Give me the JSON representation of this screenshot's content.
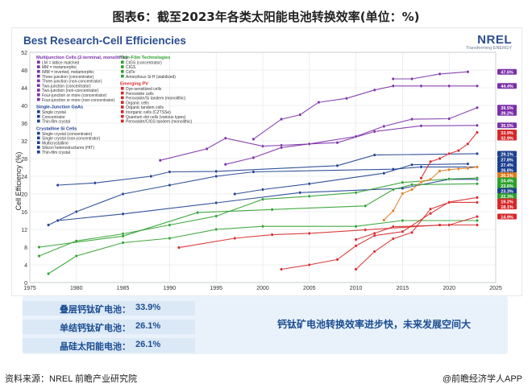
{
  "figure_title": "图表6：截至2023年各类太阳能电池转换效率(单位：%)",
  "chart_data": {
    "type": "line",
    "title": "Best Research-Cell Efficiencies",
    "ylabel": "Cell Efficiency (%)",
    "xlabel": "",
    "xlim": [
      1975,
      2025
    ],
    "ylim": [
      0,
      52
    ],
    "x_ticks": [
      1975,
      1980,
      1985,
      1990,
      1995,
      2000,
      2005,
      2010,
      2015,
      2020,
      2025
    ],
    "y_ticks": [
      0,
      4,
      8,
      12,
      16,
      20,
      24,
      28,
      32,
      36,
      40,
      44,
      48,
      52
    ],
    "grid": true,
    "legend_position": "top-left",
    "series": [
      {
        "name": "Three-junction (concentrator)",
        "color": "#7b2fa8",
        "x": [
          1999,
          2002,
          2004,
          2006,
          2009,
          2012,
          2014,
          2017,
          2020,
          2023
        ],
        "y": [
          32.4,
          36.9,
          37.9,
          40.7,
          41.6,
          43.5,
          44.4,
          44.4,
          44.4,
          44.4
        ]
      },
      {
        "name": "Four-junction or more (concentrator)",
        "color": "#7b2fa8",
        "x": [
          2014,
          2016,
          2019,
          2022
        ],
        "y": [
          46.0,
          46.0,
          47.1,
          47.6
        ]
      },
      {
        "name": "Two-junction (concentrator)",
        "color": "#7b2fa8",
        "x": [
          1989,
          1994,
          1996,
          2000,
          2002,
          2008,
          2012,
          2017,
          2023
        ],
        "y": [
          27.6,
          30.2,
          32.6,
          30.8,
          31.0,
          31.6,
          34.1,
          35.4,
          35.5
        ]
      },
      {
        "name": "Three-junction (non-concentrator)",
        "color": "#7b2fa8",
        "x": [
          1996,
          1999,
          2002,
          2005,
          2010,
          2013,
          2016,
          2020,
          2023
        ],
        "y": [
          26.7,
          28.2,
          30.5,
          31.3,
          33.0,
          35.3,
          36.9,
          37.0,
          39.5
        ]
      },
      {
        "name": "Single crystal (GaAs)",
        "color": "#1c3f8f",
        "x": [
          1978,
          1982,
          1988,
          1990,
          1995,
          2008,
          2012,
          2023
        ],
        "y": [
          22.0,
          22.5,
          24.0,
          25.0,
          25.1,
          26.4,
          28.8,
          29.1
        ]
      },
      {
        "name": "Single crystal (Si)",
        "color": "#1c3f8f",
        "x": [
          1977,
          1980,
          1985,
          1990,
          1995,
          1999,
          2014,
          2017,
          2023
        ],
        "y": [
          13.0,
          16.0,
          20.0,
          22.0,
          24.0,
          25.0,
          25.6,
          26.1,
          26.1
        ]
      },
      {
        "name": "Multicrystalline (Si)",
        "color": "#1c3f8f",
        "x": [
          1978,
          1985,
          1995,
          2004,
          2015,
          2020,
          2023
        ],
        "y": [
          14.0,
          15.5,
          18.0,
          20.3,
          21.3,
          23.3,
          23.3
        ]
      },
      {
        "name": "Silicon heterostructures (HIT)",
        "color": "#1c3f8f",
        "x": [
          1997,
          2000,
          2005,
          2013,
          2016,
          2022
        ],
        "y": [
          20.0,
          21.0,
          22.3,
          24.7,
          26.6,
          26.8
        ]
      },
      {
        "name": "CIGS",
        "color": "#2ca02c",
        "x": [
          1976,
          1980,
          1985,
          1990,
          1995,
          2000,
          2005,
          2010,
          2015,
          2020,
          2023
        ],
        "y": [
          6.0,
          9.4,
          11.0,
          13.0,
          15.0,
          18.8,
          19.5,
          20.3,
          22.6,
          23.4,
          23.6
        ]
      },
      {
        "name": "CdTe",
        "color": "#2ca02c",
        "x": [
          1976,
          1985,
          1993,
          2001,
          2011,
          2014,
          2016,
          2023
        ],
        "y": [
          8.0,
          10.5,
          15.8,
          16.5,
          17.3,
          21.0,
          22.1,
          22.3
        ]
      },
      {
        "name": "Amorphous Si:H (stabilized)",
        "color": "#2ca02c",
        "x": [
          1977,
          1980,
          1985,
          1990,
          1995,
          2000,
          2010,
          2015,
          2023
        ],
        "y": [
          2.0,
          6.0,
          9.0,
          10.0,
          12.0,
          12.7,
          12.7,
          14.0,
          14.0
        ]
      },
      {
        "name": "Perovskite cells",
        "color": "#e07b1a",
        "x": [
          2013,
          2014,
          2015,
          2016,
          2017,
          2018,
          2019,
          2020,
          2021,
          2022,
          2023
        ],
        "y": [
          14.1,
          16.2,
          20.1,
          21.0,
          22.7,
          23.3,
          25.2,
          25.5,
          25.7,
          25.8,
          26.1
        ]
      },
      {
        "name": "Perovskite/Si tandem (monolithic)",
        "color": "#d62728",
        "x": [
          2017,
          2018,
          2019,
          2020,
          2021,
          2022,
          2023
        ],
        "y": [
          23.6,
          27.3,
          28.0,
          29.1,
          29.8,
          31.3,
          33.9
        ]
      },
      {
        "name": "Organic cells",
        "color": "#d62728",
        "x": [
          2002,
          2005,
          2008,
          2010,
          2012,
          2015,
          2018,
          2020,
          2023
        ],
        "y": [
          3.0,
          4.0,
          5.2,
          8.3,
          10.6,
          11.5,
          15.6,
          18.2,
          19.2
        ]
      },
      {
        "name": "Dye-sensitized cells",
        "color": "#d62728",
        "x": [
          1991,
          1997,
          2001,
          2005,
          2011,
          2019,
          2023
        ],
        "y": [
          7.9,
          10.0,
          10.8,
          11.1,
          11.9,
          13.0,
          13.0
        ]
      },
      {
        "name": "Quantum dot cells",
        "color": "#d62728",
        "x": [
          2010,
          2012,
          2014,
          2016,
          2018,
          2020,
          2023
        ],
        "y": [
          3.0,
          7.0,
          9.9,
          11.3,
          16.6,
          18.1,
          18.1
        ]
      },
      {
        "name": "Inorganic cells (CZTSSe)",
        "color": "#d62728",
        "x": [
          2010,
          2012,
          2014,
          2020,
          2023
        ],
        "y": [
          9.7,
          11.1,
          12.6,
          13.0,
          14.9
        ]
      }
    ],
    "record_labels": [
      "47.6%",
      "44.4%",
      "39.5%",
      "39.2%",
      "35.5%",
      "33.9%",
      "32.9%",
      "29.1%",
      "27.8%",
      "27.4%",
      "26.8%",
      "26.1%",
      "24.4%",
      "23.6%",
      "23.3%",
      "22.3%",
      "19.2%",
      "18.1%",
      "14.9%"
    ],
    "record_colors": [
      "#7b2fa8",
      "#7b2fa8",
      "#7b2fa8",
      "#7b2fa8",
      "#7b2fa8",
      "#d62728",
      "#d62728",
      "#1c3f8f",
      "#1c3f8f",
      "#1c3f8f",
      "#1c3f8f",
      "#e07b1a",
      "#2ca02c",
      "#2ca02c",
      "#1c3f8f",
      "#2ca02c",
      "#d62728",
      "#d62728",
      "#d62728"
    ],
    "record_values": [
      47.6,
      44.4,
      39.5,
      39.2,
      35.5,
      33.9,
      32.9,
      29.1,
      27.8,
      27.4,
      26.8,
      26.1,
      24.4,
      23.6,
      23.3,
      22.3,
      19.2,
      18.1,
      14.9
    ]
  },
  "legend": {
    "groups": [
      {
        "title": "Multijunction Cells (2-terminal, monolithic)",
        "color": "#7b2fa8",
        "items": [
          "LM = lattice matched",
          "MM = metamorphic",
          "IMM = inverted, metamorphic",
          "Three-junction (concentrator)",
          "Three-junction (non-concentrator)",
          "Two-junction (concentrator)",
          "Two-junction (non-concentrator)",
          "Four-junction or more (concentrator)",
          "Four-junction or more (non-concentrator)"
        ]
      },
      {
        "title": "Single-Junction GaAs",
        "color": "#1c3f8f",
        "items": [
          "Single crystal",
          "Concentrator",
          "Thin-film crystal"
        ]
      },
      {
        "title": "Crystalline Si Cells",
        "color": "#1c3f8f",
        "items": [
          "Single crystal (concentrator)",
          "Single crystal (non-concentrator)",
          "Multicrystalline",
          "Silicon heterostructures (HIT)",
          "Thin-film crystal"
        ]
      },
      {
        "title": "Thin-Film Technologies",
        "color": "#2ca02c",
        "items": [
          "CIGS (concentrator)",
          "CIGS",
          "CdTe",
          "Amorphous Si:H (stabilized)"
        ]
      },
      {
        "title": "Emerging PV",
        "color": "#d62728",
        "items": [
          "Dye-sensitized cells",
          "Perovskite cells",
          "Perovskite/Si tandem (monolithic)",
          "Organic cells",
          "Organic tandem cells",
          "Inorganic cells (CZTSSe)",
          "Quantum dot cells (various types)",
          "Perovskite/CIGS tandem (monolithic)"
        ]
      }
    ]
  },
  "logo": {
    "main": "NREL",
    "sub": "Transforming ENERGY"
  },
  "summary": {
    "items": [
      {
        "label": "叠层钙钛矿电池：",
        "value": "33.9%"
      },
      {
        "label": "单结钙钛矿电池：",
        "value": "26.1%"
      },
      {
        "label": "晶硅太阳能电池：",
        "value": "26.1%"
      }
    ],
    "conclusion": "钙钛矿电池转换效率进步快，未来发展空间大",
    "arrow_color": "#4a86d8"
  },
  "footer": {
    "source": "资料来源：NREL 前瞻产业研究院",
    "brand": "@前瞻经济学人APP"
  }
}
